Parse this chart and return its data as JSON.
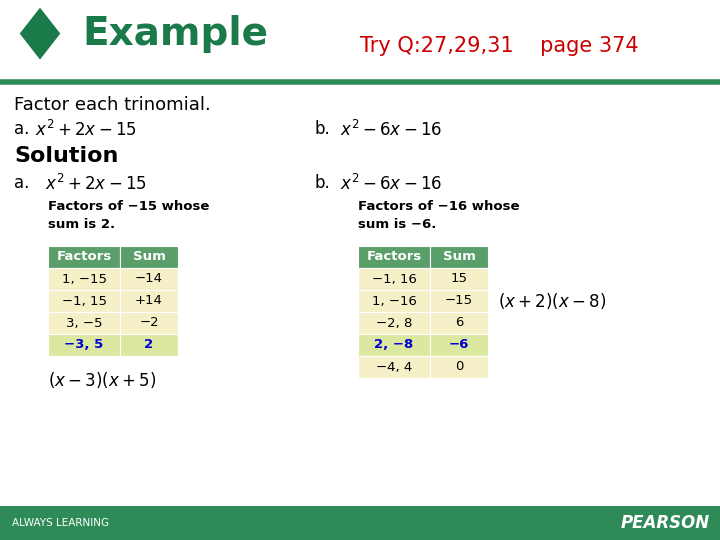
{
  "title_text": "Example",
  "try_q_text": "Try Q:27,29,31    page 374",
  "header_bg": "#ffffff",
  "green_color": "#1a7a4a",
  "diamond_color": "#1a7a4a",
  "red_color": "#cc0000",
  "blue_color": "#0000cc",
  "table_header_bg": "#5a9e6a",
  "table_row_bg": "#f5f0c8",
  "footer_bg": "#2e8b57",
  "footer_text_left": "ALWAYS LEARNING",
  "footer_text_right": "PEARSON",
  "separator_color": "#2e8b57",
  "body_text_color": "#000000",
  "problem_text": "Factor each trinomial.",
  "a_label_problem": "a.",
  "b_label_problem": "b.",
  "a_expr": "$x^2+2x-15$",
  "b_expr": "$x^2-6x-16$",
  "solution_text": "Solution",
  "a_sol_label": "a.",
  "b_sol_label": "b.",
  "a_sol_expr": "$x^2+2x-15$",
  "b_sol_expr": "$x^2-6x-16$",
  "a_factors_desc": "Factors of −15 whose\nsum is 2.",
  "b_factors_desc": "Factors of −16 whose\nsum is −6.",
  "table_a_headers": [
    "Factors",
    "Sum"
  ],
  "table_a_rows": [
    [
      "1, −15",
      "−14"
    ],
    [
      "−1, 15",
      "+14"
    ],
    [
      "3, −5",
      "−2"
    ],
    [
      "−3, 5",
      "2"
    ]
  ],
  "table_a_highlight_row": 3,
  "table_b_headers": [
    "Factors",
    "Sum"
  ],
  "table_b_rows": [
    [
      "−1, 16",
      "15"
    ],
    [
      "1, −16",
      "−15"
    ],
    [
      "−2, 8",
      "6"
    ],
    [
      "2, −8",
      "−6"
    ],
    [
      "−4, 4",
      "0"
    ]
  ],
  "table_b_highlight_row": 3,
  "a_answer": "$(x-3)(x+5)$",
  "b_answer": "$(x+2)(x-8)$",
  "bg_color": "#ffffff"
}
